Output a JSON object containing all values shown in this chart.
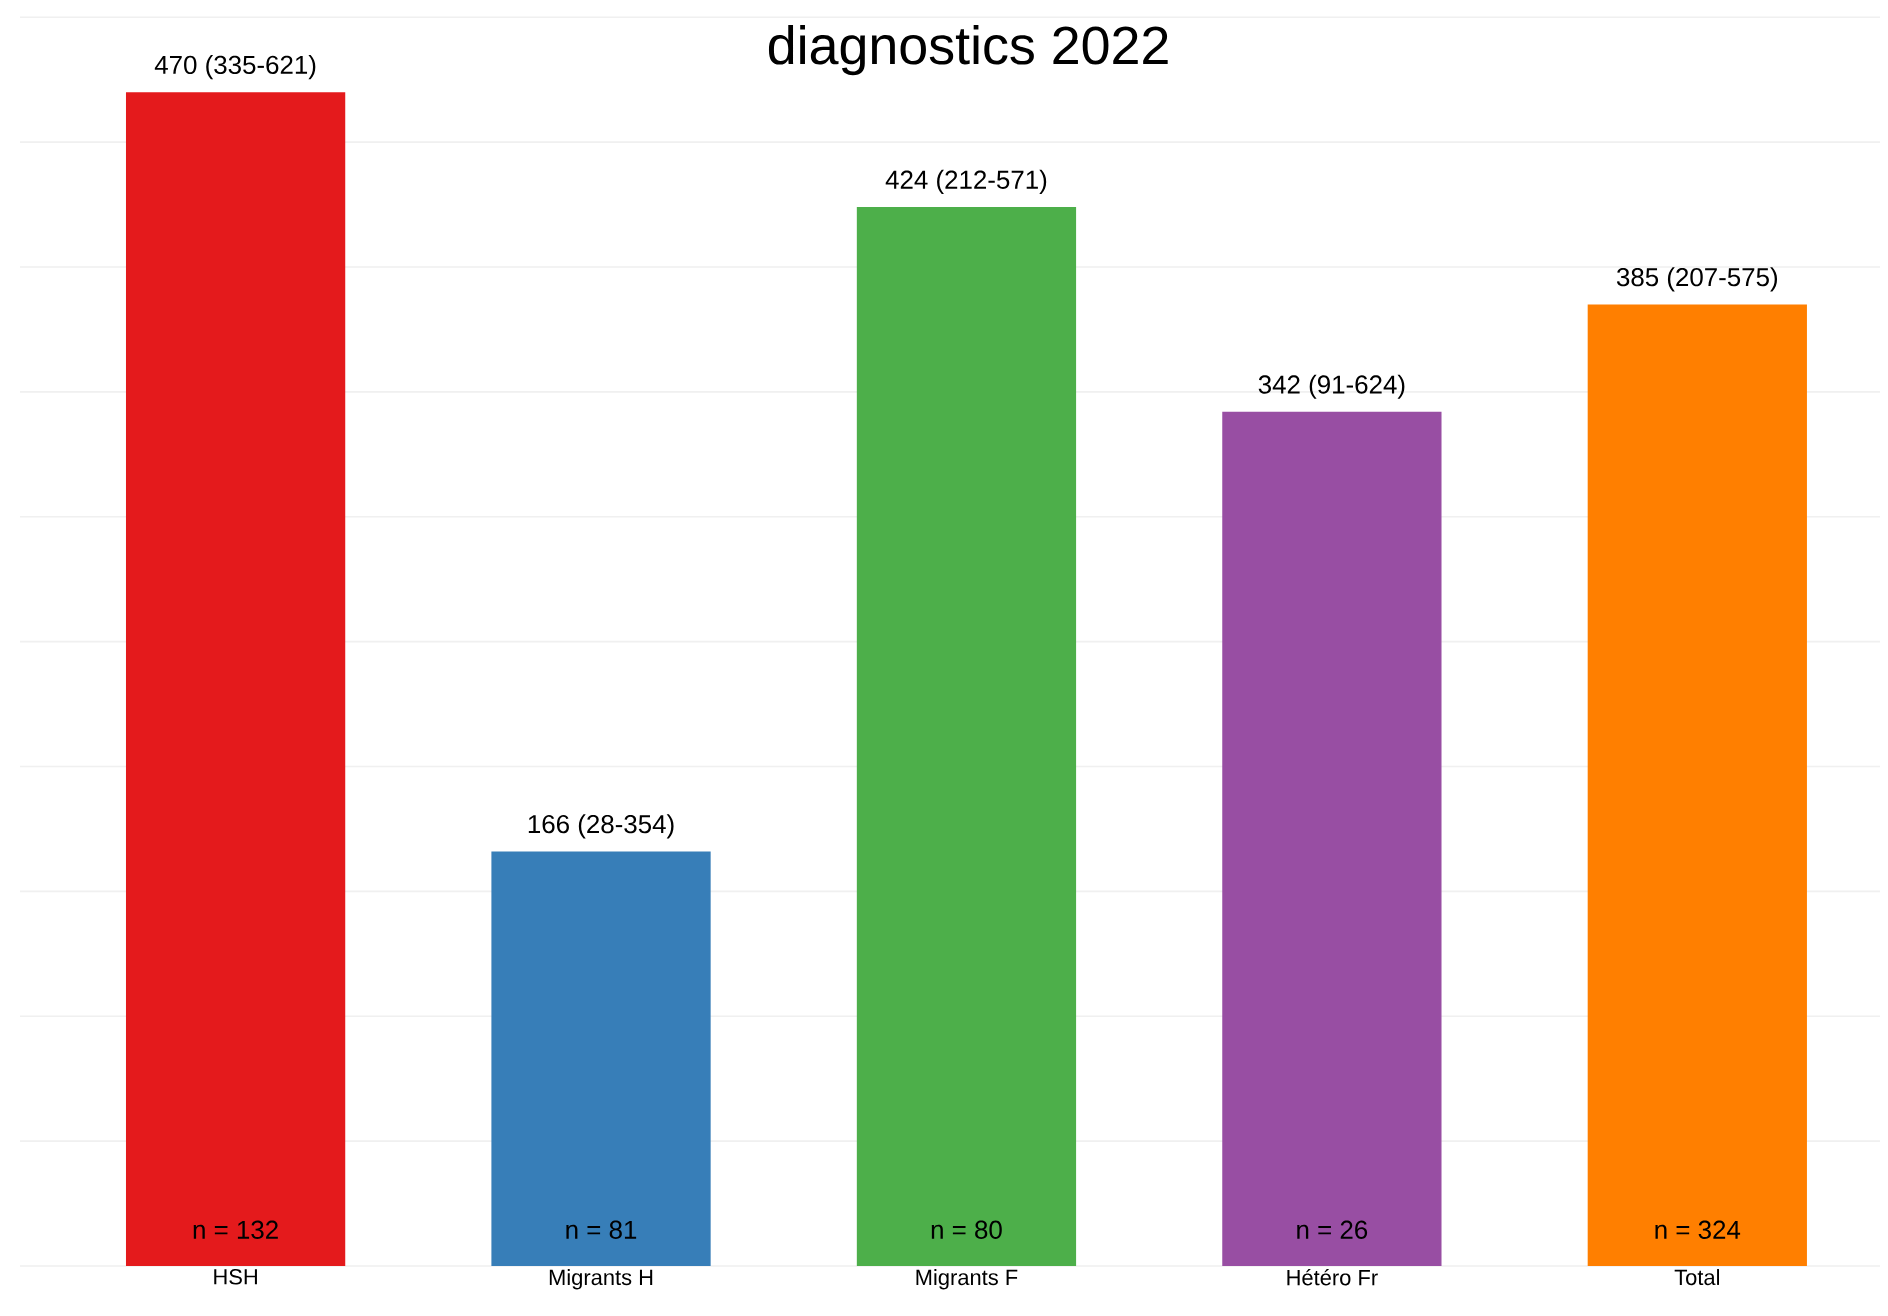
{
  "chart_data": {
    "type": "bar",
    "title": "diagnostics 2022",
    "categories": [
      "HSH",
      "Migrants H",
      "Migrants F",
      "Hétéro Fr",
      "Total"
    ],
    "values": [
      470,
      166,
      424,
      342,
      385
    ],
    "colors": [
      "#e41a1c",
      "#377eb8",
      "#4daf4a",
      "#984ea3",
      "#ff7f00"
    ],
    "value_labels": [
      "470 (335-621)",
      "166 (28-354)",
      "424 (212-571)",
      "342 (91-624)",
      "385 (207-575)"
    ],
    "annotations": [
      {
        "text": "n = 132",
        "x": "HSH",
        "y": 0
      },
      {
        "text": "n = 81",
        "x": "Migrants H",
        "y": 0
      },
      {
        "text": "n = 80",
        "x": "Migrants F",
        "y": 0
      },
      {
        "text": "n = 26",
        "x": "Hétéro Fr",
        "y": 0
      },
      {
        "text": "n = 324",
        "x": "Total",
        "y": 0
      }
    ],
    "grid": "y",
    "tick_labels": "x"
  }
}
